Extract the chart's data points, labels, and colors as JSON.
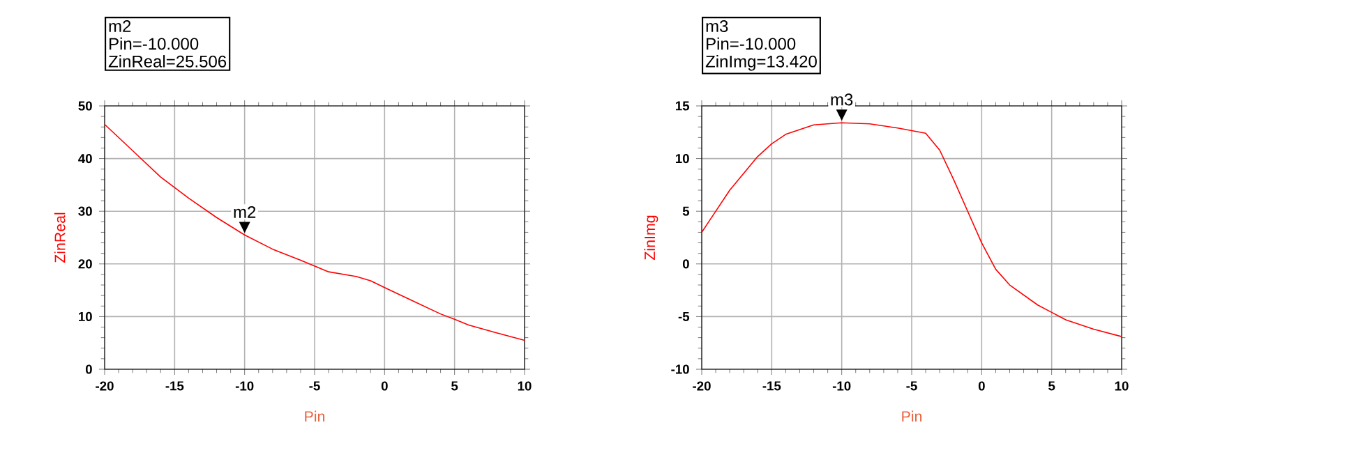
{
  "chart_data": [
    {
      "type": "line",
      "xlabel": "Pin",
      "ylabel": "ZinReal",
      "color": "#ff0000",
      "grid": true,
      "x": [
        -20,
        -18,
        -16,
        -15,
        -14,
        -12,
        -10,
        -8,
        -6,
        -5,
        -4,
        -2,
        -1,
        0,
        2,
        4,
        5,
        6,
        8,
        10
      ],
      "values": [
        46.5,
        41.5,
        36.5,
        34.5,
        32.5,
        28.8,
        25.5,
        22.8,
        20.7,
        19.6,
        18.5,
        17.6,
        16.8,
        15.5,
        13.0,
        10.5,
        9.5,
        8.4,
        6.9,
        5.5
      ],
      "xlim": [
        -20,
        10
      ],
      "ylim": [
        0,
        50
      ],
      "xticks": [
        -20,
        -15,
        -10,
        -5,
        0,
        5,
        10
      ],
      "yticks": [
        0,
        10,
        20,
        30,
        40,
        50
      ],
      "annotations": [
        {
          "text": "m2",
          "x": -10,
          "y": 25.506
        },
        "m2",
        "Pin=-10.000",
        "ZinReal=25.506"
      ]
    },
    {
      "type": "line",
      "xlabel": "Pin",
      "ylabel": "ZinImg",
      "color": "#ff0000",
      "grid": true,
      "x": [
        -20,
        -18,
        -16,
        -15,
        -14,
        -12,
        -10,
        -8,
        -6,
        -4,
        -3,
        -2,
        -1,
        0,
        1,
        2,
        4,
        5,
        6,
        8,
        10
      ],
      "values": [
        3.0,
        7.0,
        10.2,
        11.4,
        12.3,
        13.2,
        13.4,
        13.3,
        12.9,
        12.4,
        10.8,
        8.0,
        5.0,
        2.0,
        -0.5,
        -2.0,
        -3.9,
        -4.6,
        -5.3,
        -6.2,
        -6.9
      ],
      "xlim": [
        -20,
        10
      ],
      "ylim": [
        -10,
        15
      ],
      "xticks": [
        -20,
        -15,
        -10,
        -5,
        0,
        5,
        10
      ],
      "yticks": [
        -10,
        -5,
        0,
        5,
        10,
        15
      ],
      "annotations": [
        {
          "text": "m3",
          "x": -10,
          "y": 13.42
        },
        "m3",
        "Pin=-10.000",
        "ZinImg=13.420"
      ]
    }
  ]
}
